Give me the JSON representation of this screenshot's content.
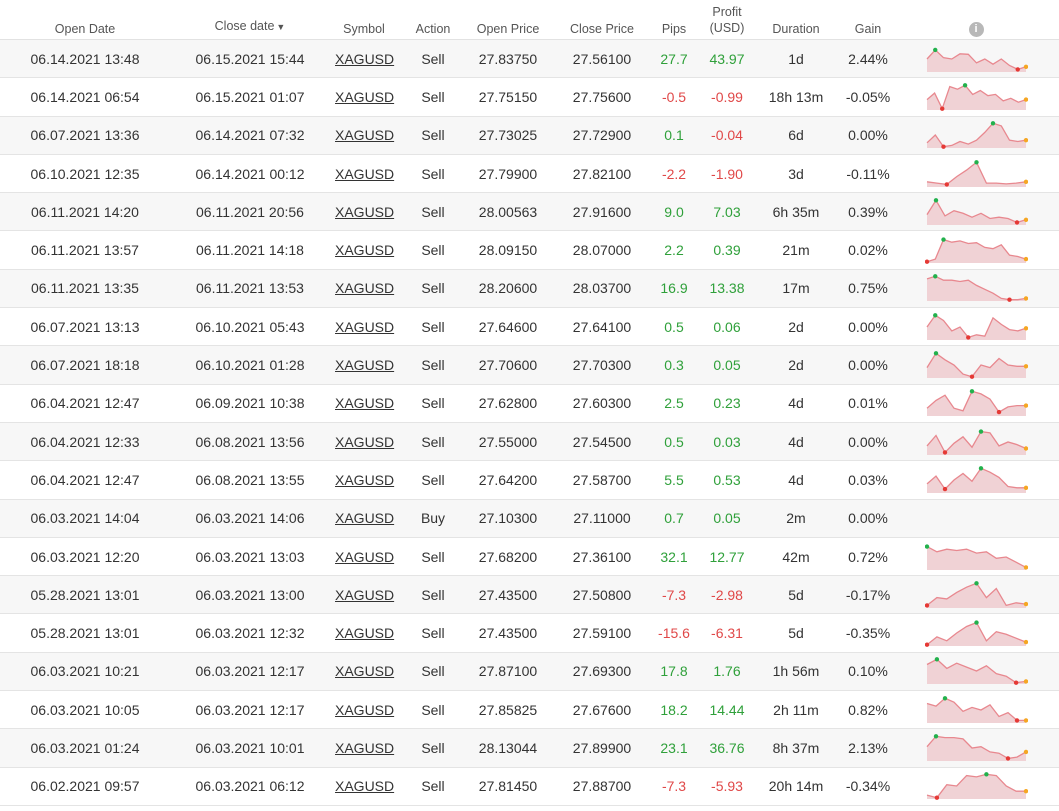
{
  "headers": {
    "open_date": "Open Date",
    "close_date": "Close date",
    "sort_indicator": "▼",
    "symbol": "Symbol",
    "action": "Action",
    "open_price": "Open Price",
    "close_price": "Close Price",
    "pips": "Pips",
    "profit_line1": "Profit",
    "profit_line2": "(USD)",
    "duration": "Duration",
    "gain": "Gain",
    "info_icon": "i"
  },
  "colors": {
    "positive": "#2fa03a",
    "negative": "#e04848",
    "spark_line": "#e8888f",
    "spark_fill": "#f0d2d5",
    "spark_high": "#22b14c",
    "spark_low": "#e53935",
    "spark_last": "#f5a623"
  },
  "rows": [
    {
      "open": "06.14.2021 13:48",
      "close": "06.15.2021 15:44",
      "symbol": "XAGUSD",
      "action": "Sell",
      "open_price": "27.83750",
      "close_price": "27.56100",
      "pips": "27.7",
      "profit": "43.97",
      "duration": "1d",
      "gain": "2.44%",
      "spark": [
        0.5,
        0.85,
        0.55,
        0.5,
        0.7,
        0.68,
        0.35,
        0.5,
        0.3,
        0.5,
        0.25,
        0.1,
        0.2
      ]
    },
    {
      "open": "06.14.2021 06:54",
      "close": "06.15.2021 01:07",
      "symbol": "XAGUSD",
      "action": "Sell",
      "open_price": "27.75150",
      "close_price": "27.75600",
      "pips": "-0.5",
      "profit": "-0.99",
      "duration": "18h 13m",
      "gain": "-0.05%",
      "spark": [
        0.4,
        0.65,
        0.05,
        0.9,
        0.8,
        0.95,
        0.6,
        0.75,
        0.55,
        0.6,
        0.35,
        0.45,
        0.3,
        0.4
      ]
    },
    {
      "open": "06.07.2021 13:36",
      "close": "06.14.2021 07:32",
      "symbol": "XAGUSD",
      "action": "Sell",
      "open_price": "27.73025",
      "close_price": "27.72900",
      "pips": "0.1",
      "profit": "-0.04",
      "duration": "6d",
      "gain": "0.00%",
      "spark": [
        0.2,
        0.5,
        0.05,
        0.1,
        0.25,
        0.15,
        0.3,
        0.6,
        0.95,
        0.85,
        0.3,
        0.25,
        0.3
      ]
    },
    {
      "open": "06.10.2021 12:35",
      "close": "06.14.2021 00:12",
      "symbol": "XAGUSD",
      "action": "Sell",
      "open_price": "27.79900",
      "close_price": "27.82100",
      "pips": "-2.2",
      "profit": "-1.90",
      "duration": "3d",
      "gain": "-0.11%",
      "spark": [
        0.2,
        0.15,
        0.1,
        0.4,
        0.65,
        0.95,
        0.15,
        0.15,
        0.12,
        0.15,
        0.2
      ]
    },
    {
      "open": "06.11.2021 14:20",
      "close": "06.11.2021 20:56",
      "symbol": "XAGUSD",
      "action": "Sell",
      "open_price": "28.00563",
      "close_price": "27.91600",
      "pips": "9.0",
      "profit": "7.03",
      "duration": "6h 35m",
      "gain": "0.39%",
      "spark": [
        0.4,
        0.95,
        0.35,
        0.55,
        0.45,
        0.3,
        0.45,
        0.25,
        0.3,
        0.25,
        0.1,
        0.2
      ]
    },
    {
      "open": "06.11.2021 13:57",
      "close": "06.11.2021 14:18",
      "symbol": "XAGUSD",
      "action": "Sell",
      "open_price": "28.09150",
      "close_price": "28.07000",
      "pips": "2.2",
      "profit": "0.39",
      "duration": "21m",
      "gain": "0.02%",
      "spark": [
        0.05,
        0.15,
        0.9,
        0.8,
        0.85,
        0.75,
        0.78,
        0.6,
        0.55,
        0.7,
        0.3,
        0.25,
        0.15
      ]
    },
    {
      "open": "06.11.2021 13:35",
      "close": "06.11.2021 13:53",
      "symbol": "XAGUSD",
      "action": "Sell",
      "open_price": "28.20600",
      "close_price": "28.03700",
      "pips": "16.9",
      "profit": "13.38",
      "duration": "17m",
      "gain": "0.75%",
      "spark": [
        0.85,
        0.95,
        0.8,
        0.8,
        0.75,
        0.8,
        0.6,
        0.45,
        0.3,
        0.1,
        0.05,
        0.05,
        0.1
      ]
    },
    {
      "open": "06.07.2021 13:13",
      "close": "06.10.2021 05:43",
      "symbol": "XAGUSD",
      "action": "Sell",
      "open_price": "27.64600",
      "close_price": "27.64100",
      "pips": "0.5",
      "profit": "0.06",
      "duration": "2d",
      "gain": "0.00%",
      "spark": [
        0.5,
        0.95,
        0.75,
        0.35,
        0.5,
        0.1,
        0.2,
        0.15,
        0.85,
        0.6,
        0.4,
        0.35,
        0.45
      ]
    },
    {
      "open": "06.07.2021 18:18",
      "close": "06.10.2021 01:28",
      "symbol": "XAGUSD",
      "action": "Sell",
      "open_price": "27.70600",
      "close_price": "27.70300",
      "pips": "0.3",
      "profit": "0.05",
      "duration": "2d",
      "gain": "0.00%",
      "spark": [
        0.4,
        0.95,
        0.7,
        0.5,
        0.15,
        0.05,
        0.5,
        0.4,
        0.75,
        0.5,
        0.45,
        0.45
      ]
    },
    {
      "open": "06.04.2021 12:47",
      "close": "06.09.2021 10:38",
      "symbol": "XAGUSD",
      "action": "Sell",
      "open_price": "27.62800",
      "close_price": "27.60300",
      "pips": "2.5",
      "profit": "0.23",
      "duration": "4d",
      "gain": "0.01%",
      "spark": [
        0.3,
        0.6,
        0.8,
        0.3,
        0.2,
        0.95,
        0.85,
        0.65,
        0.15,
        0.35,
        0.4,
        0.4
      ]
    },
    {
      "open": "06.04.2021 12:33",
      "close": "06.08.2021 13:56",
      "symbol": "XAGUSD",
      "action": "Sell",
      "open_price": "27.55000",
      "close_price": "27.54500",
      "pips": "0.5",
      "profit": "0.03",
      "duration": "4d",
      "gain": "0.00%",
      "spark": [
        0.35,
        0.75,
        0.1,
        0.45,
        0.7,
        0.3,
        0.9,
        0.85,
        0.35,
        0.5,
        0.4,
        0.25
      ]
    },
    {
      "open": "06.04.2021 12:47",
      "close": "06.08.2021 13:55",
      "symbol": "XAGUSD",
      "action": "Sell",
      "open_price": "27.64200",
      "close_price": "27.58700",
      "pips": "5.5",
      "profit": "0.53",
      "duration": "4d",
      "gain": "0.03%",
      "spark": [
        0.35,
        0.65,
        0.15,
        0.5,
        0.75,
        0.45,
        0.95,
        0.8,
        0.6,
        0.25,
        0.2,
        0.2
      ]
    },
    {
      "open": "06.03.2021 14:04",
      "close": "06.03.2021 14:06",
      "symbol": "XAGUSD",
      "action": "Buy",
      "open_price": "27.10300",
      "close_price": "27.11000",
      "pips": "0.7",
      "profit": "0.05",
      "duration": "2m",
      "gain": "0.00%",
      "spark": []
    },
    {
      "open": "06.03.2021 12:20",
      "close": "06.03.2021 13:03",
      "symbol": "XAGUSD",
      "action": "Sell",
      "open_price": "27.68200",
      "close_price": "27.36100",
      "pips": "32.1",
      "profit": "12.77",
      "duration": "42m",
      "gain": "0.72%",
      "spark": [
        0.9,
        0.7,
        0.8,
        0.75,
        0.8,
        0.65,
        0.7,
        0.45,
        0.5,
        0.3,
        0.1
      ]
    },
    {
      "open": "05.28.2021 13:01",
      "close": "06.03.2021 13:00",
      "symbol": "XAGUSD",
      "action": "Sell",
      "open_price": "27.43500",
      "close_price": "27.50800",
      "pips": "-7.3",
      "profit": "-2.98",
      "duration": "5d",
      "gain": "-0.17%",
      "spark": [
        0.1,
        0.4,
        0.35,
        0.6,
        0.8,
        0.95,
        0.4,
        0.75,
        0.1,
        0.2,
        0.15
      ]
    },
    {
      "open": "05.28.2021 13:01",
      "close": "06.03.2021 12:32",
      "symbol": "XAGUSD",
      "action": "Sell",
      "open_price": "27.43500",
      "close_price": "27.59100",
      "pips": "-15.6",
      "profit": "-6.31",
      "duration": "5d",
      "gain": "-0.35%",
      "spark": [
        0.05,
        0.35,
        0.2,
        0.5,
        0.75,
        0.9,
        0.2,
        0.55,
        0.45,
        0.3,
        0.15
      ]
    },
    {
      "open": "06.03.2021 10:21",
      "close": "06.03.2021 12:17",
      "symbol": "XAGUSD",
      "action": "Sell",
      "open_price": "27.87100",
      "close_price": "27.69300",
      "pips": "17.8",
      "profit": "1.76",
      "duration": "1h 56m",
      "gain": "0.10%",
      "spark": [
        0.75,
        0.95,
        0.6,
        0.8,
        0.65,
        0.5,
        0.7,
        0.4,
        0.3,
        0.05,
        0.1
      ]
    },
    {
      "open": "06.03.2021 10:05",
      "close": "06.03.2021 12:17",
      "symbol": "XAGUSD",
      "action": "Sell",
      "open_price": "27.85825",
      "close_price": "27.67600",
      "pips": "18.2",
      "profit": "14.44",
      "duration": "2h 11m",
      "gain": "0.82%",
      "spark": [
        0.75,
        0.65,
        0.95,
        0.8,
        0.45,
        0.6,
        0.5,
        0.7,
        0.25,
        0.4,
        0.1,
        0.1
      ]
    },
    {
      "open": "06.03.2021 01:24",
      "close": "06.03.2021 10:01",
      "symbol": "XAGUSD",
      "action": "Sell",
      "open_price": "28.13044",
      "close_price": "27.89900",
      "pips": "23.1",
      "profit": "36.76",
      "duration": "8h 37m",
      "gain": "2.13%",
      "spark": [
        0.55,
        0.95,
        0.9,
        0.9,
        0.85,
        0.5,
        0.55,
        0.35,
        0.3,
        0.1,
        0.15,
        0.35
      ]
    },
    {
      "open": "06.02.2021 09:57",
      "close": "06.03.2021 06:12",
      "symbol": "XAGUSD",
      "action": "Sell",
      "open_price": "27.81450",
      "close_price": "27.88700",
      "pips": "-7.3",
      "profit": "-5.93",
      "duration": "20h 14m",
      "gain": "-0.34%",
      "spark": [
        0.15,
        0.05,
        0.55,
        0.5,
        0.9,
        0.85,
        0.95,
        0.9,
        0.5,
        0.3,
        0.3
      ]
    }
  ]
}
